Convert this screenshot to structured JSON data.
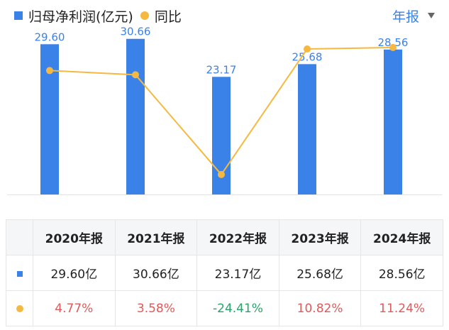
{
  "legend": {
    "series1": "归母净利润(亿元)",
    "series2": "同比"
  },
  "period_selector": {
    "label": "年报"
  },
  "colors": {
    "bar": "#3b82e8",
    "line": "#f5b942",
    "positive": "#e05a5a",
    "negative": "#2aa36b"
  },
  "chart_data": {
    "type": "bar",
    "categories": [
      "2020年报",
      "2021年报",
      "2022年报",
      "2023年报",
      "2024年报"
    ],
    "series": [
      {
        "name": "归母净利润(亿元)",
        "type": "bar",
        "values": [
          29.6,
          30.66,
          23.17,
          25.68,
          28.56
        ],
        "labels": [
          "29.60",
          "30.66",
          "23.17",
          "25.68",
          "28.56"
        ]
      },
      {
        "name": "同比",
        "type": "line",
        "values": [
          4.77,
          3.58,
          -24.41,
          10.82,
          11.24
        ]
      }
    ],
    "ylim": [
      0,
      33
    ],
    "line_ylim": [
      -30,
      17
    ],
    "grid": false
  },
  "table": {
    "headers": [
      "2020年报",
      "2021年报",
      "2022年报",
      "2023年报",
      "2024年报"
    ],
    "profit_row": [
      "29.60亿",
      "30.66亿",
      "23.17亿",
      "25.68亿",
      "28.56亿"
    ],
    "yoy_row": [
      "4.77%",
      "3.58%",
      "-24.41%",
      "10.82%",
      "11.24%"
    ]
  }
}
